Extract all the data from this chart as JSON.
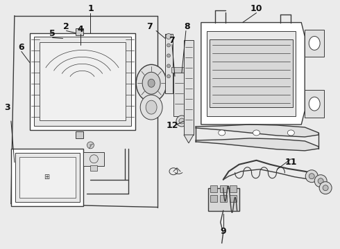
{
  "bg_color": "#ebebeb",
  "line_color": "#3a3a3a",
  "text_color": "#111111",
  "label_fontsize": 9,
  "fig_width": 4.9,
  "fig_height": 3.6,
  "dpi": 100
}
